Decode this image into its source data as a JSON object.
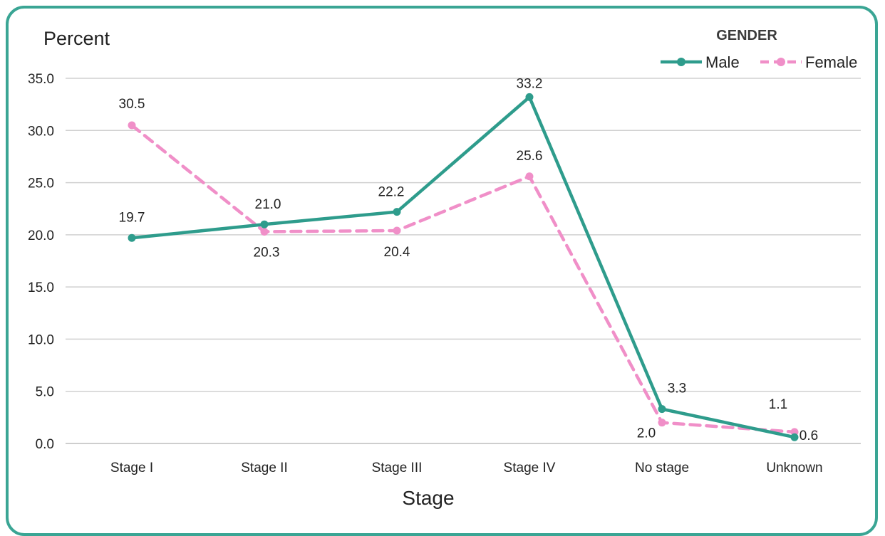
{
  "chart_data": {
    "type": "line",
    "ylabel": "Percent",
    "xlabel": "Stage",
    "categories": [
      "Stage I",
      "Stage II",
      "Stage III",
      "Stage IV",
      "No stage",
      "Unknown"
    ],
    "ylim": [
      0,
      35
    ],
    "yticks": [
      "0.0",
      "5.0",
      "10.0",
      "15.0",
      "20.0",
      "25.0",
      "30.0",
      "35.0"
    ],
    "grid": true,
    "legend": {
      "title": "GENDER",
      "placement": "top-right"
    },
    "series": [
      {
        "name": "Male",
        "values": [
          19.7,
          21.0,
          22.2,
          33.2,
          3.3,
          0.6
        ],
        "labels": [
          "19.7",
          "21.0",
          "22.2",
          "33.2",
          "3.3",
          "0.6"
        ],
        "color": "#2e9c8c",
        "style": "solid"
      },
      {
        "name": "Female",
        "values": [
          30.5,
          20.3,
          20.4,
          25.6,
          2.0,
          1.1
        ],
        "labels": [
          "30.5",
          "20.3",
          "20.4",
          "25.6",
          "2.0",
          "1.1"
        ],
        "color": "#f08fc8",
        "style": "dashed"
      }
    ]
  }
}
